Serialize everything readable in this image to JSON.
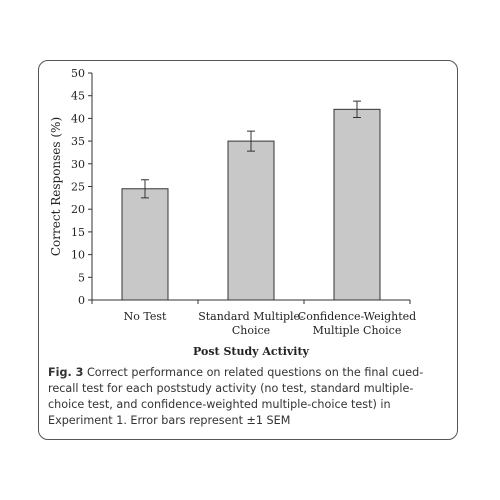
{
  "chart_data": {
    "type": "bar",
    "categories": [
      [
        "No Test"
      ],
      [
        "Standard Multiple-",
        "Choice"
      ],
      [
        "Confidence-Weighted",
        "Multiple Choice"
      ]
    ],
    "values": [
      24.5,
      35,
      42
    ],
    "errors": [
      2,
      2.2,
      1.8
    ],
    "ylim": [
      0,
      50
    ],
    "yticks": [
      "0",
      "5",
      "10",
      "15",
      "20",
      "25",
      "30",
      "35",
      "40",
      "45",
      "50"
    ],
    "ylabel": "Correct Responses (%)",
    "xlabel": "Post Study Activity",
    "bar_color": "#c8c8c8",
    "grid": false
  },
  "caption": {
    "label": "Fig. 3",
    "text": " Correct performance on related questions on the final cued-recall test for each poststudy activity (no test, standard multiple-choice test, and confidence-weighted multiple-choice test) in Experiment 1. Error bars represent ±1 SEM"
  }
}
